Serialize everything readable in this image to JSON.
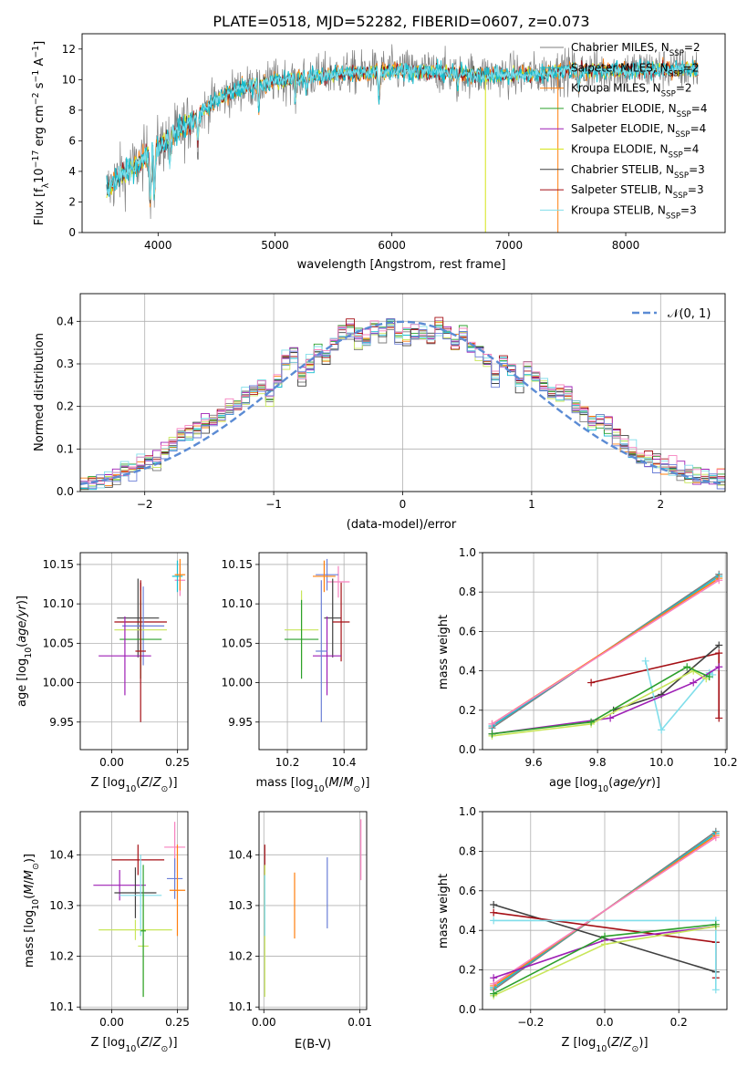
{
  "colors": {
    "chabrier_miles": "#7f7f7f",
    "salpeter_miles": "#17becf",
    "kroupa_miles": "#ff7f0e",
    "chabrier_elodie": "#2ca02c",
    "salpeter_elodie": "#9e1fb5",
    "kroupa_elodie": "#d6e51a",
    "chabrier_stelib": "#404040",
    "salpeter_stelib": "#a50f15",
    "kroupa_stelib": "#80deea",
    "extra_pink": "#f781bf",
    "extra_blue": "#6b7fd7",
    "extra_green": "#66bb6a",
    "extra_lime": "#c8e65a",
    "normal_curve": "#5b8bd4"
  },
  "chart_data": [
    {
      "id": "spectrum",
      "type": "line",
      "title": "PLATE=0518, MJD=52282, FIBERID=0607, z=0.073",
      "xlabel": "wavelength [Angstrom, rest frame]",
      "ylabel": "Flux [f_λ10^-17 erg cm^-2 s^-1 A^-1]",
      "xlim": [
        3350,
        8850
      ],
      "ylim": [
        0,
        13
      ],
      "xticks": [
        "4000",
        "5000",
        "6000",
        "7000",
        "8000"
      ],
      "yticks": [
        "0",
        "2",
        "4",
        "6",
        "8",
        "10",
        "12"
      ],
      "grid": false,
      "legend_position": "right",
      "legend": [
        {
          "label": "Chabrier MILES, N",
          "sub": "SSP",
          "suffix": "=2",
          "color_key": "chabrier_miles"
        },
        {
          "label": "Salpeter MILES, N",
          "sub": "SSP",
          "suffix": "=2",
          "color_key": "salpeter_miles"
        },
        {
          "label": "Kroupa MILES, N",
          "sub": "SSP",
          "suffix": "=2",
          "color_key": "kroupa_miles"
        },
        {
          "label": "Chabrier ELODIE, N",
          "sub": "SSP",
          "suffix": "=4",
          "color_key": "chabrier_elodie"
        },
        {
          "label": "Salpeter ELODIE, N",
          "sub": "SSP",
          "suffix": "=4",
          "color_key": "salpeter_elodie"
        },
        {
          "label": "Kroupa ELODIE, N",
          "sub": "SSP",
          "suffix": "=4",
          "color_key": "kroupa_elodie"
        },
        {
          "label": "Chabrier STELIB, N",
          "sub": "SSP",
          "suffix": "=3",
          "color_key": "chabrier_stelib"
        },
        {
          "label": "Salpeter STELIB, N",
          "sub": "SSP",
          "suffix": "=3",
          "color_key": "salpeter_stelib"
        },
        {
          "label": "Kroupa STELIB, N",
          "sub": "SSP",
          "suffix": "=3",
          "color_key": "kroupa_stelib"
        }
      ],
      "continuum_points": [
        [
          3550,
          2.6
        ],
        [
          3650,
          3.6
        ],
        [
          3800,
          4.3
        ],
        [
          3900,
          5.0
        ],
        [
          4000,
          5.6
        ],
        [
          4100,
          6.2
        ],
        [
          4300,
          7.4
        ],
        [
          4500,
          8.7
        ],
        [
          4700,
          9.4
        ],
        [
          5000,
          9.9
        ],
        [
          5300,
          10.2
        ],
        [
          5600,
          10.4
        ],
        [
          6000,
          10.6
        ],
        [
          6400,
          10.5
        ],
        [
          6800,
          10.3
        ],
        [
          7200,
          10.3
        ],
        [
          7500,
          10.6
        ],
        [
          8000,
          10.6
        ],
        [
          8400,
          10.7
        ],
        [
          8600,
          10.7
        ]
      ]
    },
    {
      "id": "residuals",
      "type": "histogram",
      "xlabel": "(data-model)/error",
      "ylabel": "Normed distribution",
      "xlim": [
        -2.5,
        2.5
      ],
      "ylim": [
        0,
        0.465
      ],
      "xticks": [
        -2,
        -1,
        0,
        1,
        2
      ],
      "yticks": [
        0.0,
        0.1,
        0.2,
        0.3,
        0.4
      ],
      "grid": true,
      "legend_position": "top-right",
      "legend": [
        {
          "label": "𝒩(0, 1)",
          "color_key": "normal_curve"
        }
      ],
      "bin_width": 0.1,
      "base_distribution": [
        0.018,
        0.02,
        0.025,
        0.03,
        0.04,
        0.05,
        0.058,
        0.065,
        0.07,
        0.075,
        0.09,
        0.11,
        0.13,
        0.14,
        0.15,
        0.16,
        0.17,
        0.18,
        0.19,
        0.2,
        0.22,
        0.24,
        0.25,
        0.22,
        0.26,
        0.31,
        0.32,
        0.27,
        0.3,
        0.33,
        0.32,
        0.35,
        0.37,
        0.38,
        0.36,
        0.36,
        0.39,
        0.38,
        0.39,
        0.37,
        0.37,
        0.38,
        0.37,
        0.36,
        0.39,
        0.37,
        0.35,
        0.37,
        0.34,
        0.33,
        0.31,
        0.27,
        0.31,
        0.3,
        0.26,
        0.29,
        0.27,
        0.25,
        0.24,
        0.23,
        0.23,
        0.2,
        0.19,
        0.17,
        0.17,
        0.15,
        0.13,
        0.12,
        0.09,
        0.08,
        0.075,
        0.07,
        0.06,
        0.05,
        0.045,
        0.04,
        0.035,
        0.03,
        0.03,
        0.028
      ]
    },
    {
      "id": "age_vs_Z",
      "type": "errorbar",
      "xlabel": "Z [log10(Z/Z⊙)]",
      "ylabel": "age [log10(age/yr)]",
      "xlim": [
        -0.12,
        0.29
      ],
      "ylim": [
        9.915,
        10.165
      ],
      "xticks": [
        "0.00",
        "0.25"
      ],
      "yticks": [
        "9.95",
        "10.00",
        "10.05",
        "10.10",
        "10.15"
      ],
      "grid": true,
      "points": [
        {
          "x": 0.26,
          "y": 10.13,
          "xerr": 0.02,
          "yerr": 0.02,
          "color_key": "extra_pink"
        },
        {
          "x": 0.25,
          "y": 10.135,
          "xerr": 0.02,
          "yerr": 0.02,
          "color_key": "salpeter_miles"
        },
        {
          "x": 0.26,
          "y": 10.137,
          "xerr": 0.02,
          "yerr": 0.02,
          "color_key": "kroupa_miles"
        },
        {
          "x": 0.1,
          "y": 10.082,
          "xerr": 0.08,
          "yerr": 0.05,
          "color_key": "chabrier_stelib"
        },
        {
          "x": 0.11,
          "y": 10.077,
          "xerr": 0.1,
          "yerr": 0.05,
          "color_key": "salpeter_stelib"
        },
        {
          "x": 0.12,
          "y": 10.072,
          "xerr": 0.08,
          "yerr": 0.05,
          "color_key": "extra_blue"
        },
        {
          "x": 0.11,
          "y": 10.067,
          "xerr": 0.1,
          "yerr": 0.05,
          "color_key": "extra_lime"
        },
        {
          "x": 0.11,
          "y": 10.055,
          "xerr": 0.08,
          "yerr": 0.05,
          "color_key": "chabrier_elodie"
        },
        {
          "x": 0.05,
          "y": 10.034,
          "xerr": 0.1,
          "yerr": 0.05,
          "color_key": "salpeter_elodie"
        },
        {
          "x": 0.11,
          "y": 10.04,
          "xerr": 0.02,
          "yerr": 0.09,
          "color_key": "salpeter_stelib"
        }
      ]
    },
    {
      "id": "age_vs_mass",
      "type": "errorbar",
      "xlabel": "mass [log10(M/M⊙)]",
      "ylabel": "",
      "xlim": [
        10.1,
        10.48
      ],
      "ylim": [
        9.915,
        10.165
      ],
      "xticks": [
        "10.2",
        "10.4"
      ],
      "yticks": [
        "9.95",
        "10.00",
        "10.05",
        "10.10",
        "10.15"
      ],
      "grid": true,
      "points": [
        {
          "x": 10.38,
          "y": 10.128,
          "xerr": 0.04,
          "yerr": 0.02,
          "color_key": "extra_pink"
        },
        {
          "x": 10.34,
          "y": 10.137,
          "xerr": 0.04,
          "yerr": 0.02,
          "color_key": "extra_blue"
        },
        {
          "x": 10.33,
          "y": 10.135,
          "xerr": 0.04,
          "yerr": 0.02,
          "color_key": "kroupa_miles"
        },
        {
          "x": 10.36,
          "y": 10.082,
          "xerr": 0.03,
          "yerr": 0.05,
          "color_key": "chabrier_stelib"
        },
        {
          "x": 10.39,
          "y": 10.077,
          "xerr": 0.03,
          "yerr": 0.05,
          "color_key": "salpeter_stelib"
        },
        {
          "x": 10.25,
          "y": 10.067,
          "xerr": 0.06,
          "yerr": 0.05,
          "color_key": "extra_lime"
        },
        {
          "x": 10.25,
          "y": 10.055,
          "xerr": 0.06,
          "yerr": 0.05,
          "color_key": "chabrier_elodie"
        },
        {
          "x": 10.34,
          "y": 10.034,
          "xerr": 0.05,
          "yerr": 0.05,
          "color_key": "salpeter_elodie"
        },
        {
          "x": 10.32,
          "y": 10.04,
          "xerr": 0.02,
          "yerr": 0.09,
          "color_key": "extra_blue"
        }
      ]
    },
    {
      "id": "massweight_vs_age",
      "type": "line",
      "xlabel": "age [log10(age/yr)]",
      "ylabel": "mass weight",
      "xlim": [
        9.44,
        10.205
      ],
      "ylim": [
        0,
        1.0
      ],
      "xticks": [
        "9.6",
        "9.8",
        "10.0",
        "10.2"
      ],
      "yticks": [
        "0.0",
        "0.2",
        "0.4",
        "0.6",
        "0.8",
        "1.0"
      ],
      "grid": true,
      "series": [
        {
          "color_key": "chabrier_miles",
          "x": [
            9.47,
            10.18
          ],
          "y": [
            0.11,
            0.89
          ]
        },
        {
          "color_key": "salpeter_miles",
          "x": [
            9.47,
            10.18
          ],
          "y": [
            0.12,
            0.88
          ]
        },
        {
          "color_key": "kroupa_miles",
          "x": [
            9.47,
            10.18
          ],
          "y": [
            0.13,
            0.87
          ]
        },
        {
          "color_key": "extra_pink",
          "x": [
            9.47,
            10.18
          ],
          "y": [
            0.13,
            0.86
          ]
        },
        {
          "color_key": "salpeter_stelib",
          "x": [
            9.78,
            10.18,
            10.18
          ],
          "y": [
            0.34,
            0.49,
            0.16
          ]
        },
        {
          "color_key": "chabrier_stelib",
          "x": [
            9.85,
            10.0,
            10.18
          ],
          "y": [
            0.2,
            0.28,
            0.53
          ]
        },
        {
          "color_key": "kroupa_stelib",
          "x": [
            9.95,
            10.0,
            10.15,
            10.16
          ],
          "y": [
            0.45,
            0.1,
            0.39,
            0.38
          ]
        },
        {
          "color_key": "salpeter_elodie",
          "x": [
            9.47,
            9.84,
            10.1,
            10.18
          ],
          "y": [
            0.08,
            0.16,
            0.34,
            0.42
          ]
        },
        {
          "color_key": "extra_lime",
          "x": [
            9.47,
            9.78,
            10.1,
            10.14
          ],
          "y": [
            0.07,
            0.13,
            0.4,
            0.36
          ]
        },
        {
          "color_key": "chabrier_elodie",
          "x": [
            9.47,
            9.78,
            10.08,
            10.15
          ],
          "y": [
            0.08,
            0.14,
            0.42,
            0.37
          ]
        }
      ]
    },
    {
      "id": "mass_vs_Z",
      "type": "errorbar",
      "xlabel": "Z [log10(Z/Z⊙)]",
      "ylabel": "mass [log10(M/M⊙)]",
      "xlim": [
        -0.12,
        0.29
      ],
      "ylim": [
        10.095,
        10.485
      ],
      "xticks": [
        "0.00",
        "0.25"
      ],
      "yticks": [
        "10.1",
        "10.2",
        "10.3",
        "10.4"
      ],
      "grid": true,
      "points": [
        {
          "x": 0.24,
          "y": 10.415,
          "xerr": 0.04,
          "yerr": 0.05,
          "color_key": "extra_pink"
        },
        {
          "x": 0.1,
          "y": 10.39,
          "xerr": 0.1,
          "yerr": 0.03,
          "color_key": "salpeter_stelib"
        },
        {
          "x": 0.24,
          "y": 10.353,
          "xerr": 0.03,
          "yerr": 0.04,
          "color_key": "extra_blue"
        },
        {
          "x": 0.03,
          "y": 10.34,
          "xerr": 0.1,
          "yerr": 0.03,
          "color_key": "salpeter_elodie"
        },
        {
          "x": 0.25,
          "y": 10.33,
          "xerr": 0.03,
          "yerr": 0.09,
          "color_key": "kroupa_miles"
        },
        {
          "x": 0.09,
          "y": 10.325,
          "xerr": 0.08,
          "yerr": 0.05,
          "color_key": "chabrier_stelib"
        },
        {
          "x": 0.11,
          "y": 10.32,
          "xerr": 0.08,
          "yerr": 0.08,
          "color_key": "kroupa_stelib"
        },
        {
          "x": 0.09,
          "y": 10.252,
          "xerr": 0.14,
          "yerr": 0.02,
          "color_key": "extra_lime"
        },
        {
          "x": 0.12,
          "y": 10.22,
          "xerr": 0.02,
          "yerr": 0.1,
          "color_key": "extra_lime"
        },
        {
          "x": 0.12,
          "y": 10.25,
          "xerr": 0.01,
          "yerr": 0.13,
          "color_key": "chabrier_elodie"
        }
      ]
    },
    {
      "id": "mass_vs_EBV",
      "type": "errorbar",
      "xlabel": "E(B-V)",
      "ylabel": "",
      "xlim": [
        -0.0005,
        0.0107
      ],
      "ylim": [
        10.095,
        10.485
      ],
      "xticks": [
        "0.00",
        "0.01"
      ],
      "yticks": [
        "10.1",
        "10.2",
        "10.3",
        "10.4"
      ],
      "grid": true,
      "points": [
        {
          "x": 0.0001,
          "y": 10.39,
          "xerr": 0,
          "yerr": 0.03,
          "color_key": "salpeter_stelib"
        },
        {
          "x": 0.0001,
          "y": 10.25,
          "xerr": 0,
          "yerr": 0.13,
          "color_key": "extra_lime"
        },
        {
          "x": 0.0001,
          "y": 10.3,
          "xerr": 0,
          "yerr": 0.06,
          "color_key": "kroupa_stelib"
        },
        {
          "x": 0.0032,
          "y": 10.3,
          "xerr": 0,
          "yerr": 0.065,
          "color_key": "kroupa_miles"
        },
        {
          "x": 0.0066,
          "y": 10.325,
          "xerr": 0,
          "yerr": 0.07,
          "color_key": "extra_blue"
        },
        {
          "x": 0.0101,
          "y": 10.41,
          "xerr": 0,
          "yerr": 0.06,
          "color_key": "extra_pink"
        }
      ]
    },
    {
      "id": "massweight_vs_Z",
      "type": "line",
      "xlabel": "Z [log10(Z/Z⊙)]",
      "ylabel": "mass weight",
      "xlim": [
        -0.33,
        0.33
      ],
      "ylim": [
        0,
        1.0
      ],
      "xticks": [
        "−0.2",
        "0.0",
        "0.2"
      ],
      "yticks": [
        "0.0",
        "0.2",
        "0.4",
        "0.6",
        "0.8",
        "1.0"
      ],
      "grid": true,
      "series": [
        {
          "color_key": "chabrier_miles",
          "x": [
            -0.3,
            0.3
          ],
          "y": [
            0.1,
            0.9
          ]
        },
        {
          "color_key": "salpeter_miles",
          "x": [
            -0.3,
            0.3
          ],
          "y": [
            0.11,
            0.89
          ]
        },
        {
          "color_key": "kroupa_miles",
          "x": [
            -0.3,
            0.3
          ],
          "y": [
            0.12,
            0.88
          ]
        },
        {
          "color_key": "extra_pink",
          "x": [
            -0.3,
            0.3
          ],
          "y": [
            0.13,
            0.87
          ]
        },
        {
          "color_key": "chabrier_stelib",
          "x": [
            -0.3,
            0.3,
            0.3
          ],
          "y": [
            0.53,
            0.19,
            0.34
          ]
        },
        {
          "color_key": "salpeter_stelib",
          "x": [
            -0.3,
            0.3,
            0.3
          ],
          "y": [
            0.49,
            0.34,
            0.16
          ]
        },
        {
          "color_key": "kroupa_stelib",
          "x": [
            -0.3,
            0.3,
            0.3
          ],
          "y": [
            0.45,
            0.45,
            0.1
          ]
        },
        {
          "color_key": "salpeter_elodie",
          "x": [
            -0.3,
            0.0,
            0.3
          ],
          "y": [
            0.16,
            0.35,
            0.42
          ]
        },
        {
          "color_key": "extra_lime",
          "x": [
            -0.3,
            0.0,
            0.3
          ],
          "y": [
            0.07,
            0.33,
            0.42
          ]
        },
        {
          "color_key": "chabrier_elodie",
          "x": [
            -0.3,
            0.0,
            0.3
          ],
          "y": [
            0.08,
            0.37,
            0.43
          ]
        }
      ]
    }
  ]
}
